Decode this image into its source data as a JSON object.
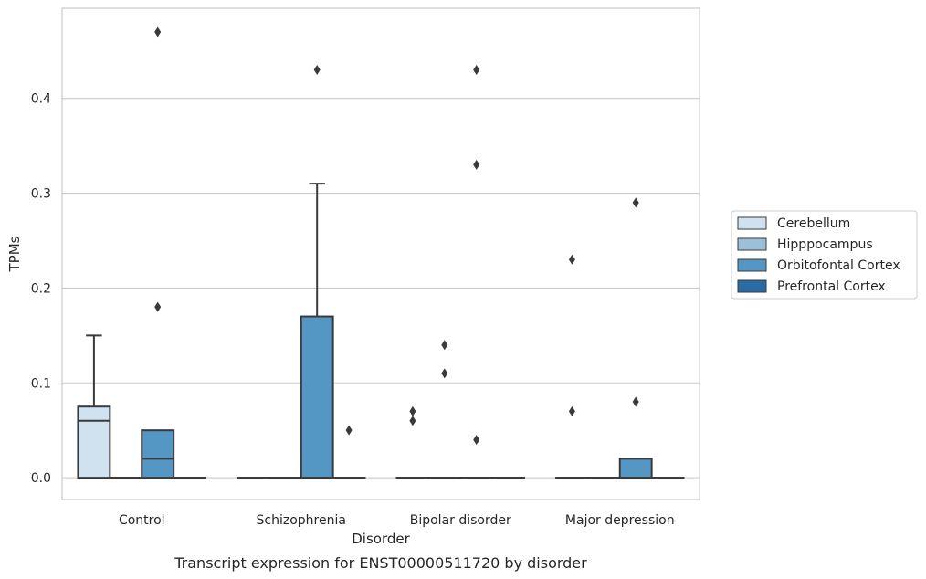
{
  "chart_data": {
    "type": "boxplot",
    "caption": "Transcript expression for ENST00000511720 by disorder",
    "xlabel": "Disorder",
    "ylabel": "TPMs",
    "ylim": [
      -0.023,
      0.495
    ],
    "yticks": [
      "0.0",
      "0.1",
      "0.2",
      "0.3",
      "0.4"
    ],
    "grid": true,
    "legend_placement": "right",
    "categories": [
      "Control",
      "Schizophrenia",
      "Bipolar disorder",
      "Major depression"
    ],
    "series": [
      {
        "name": "Cerebellum",
        "color": "#d0e1f0",
        "boxes": [
          {
            "q1": 0,
            "median": 0.06,
            "q3": 0.075,
            "whisker_low": 0,
            "whisker_high": 0.15,
            "outliers": []
          },
          {
            "q1": 0,
            "median": 0,
            "q3": 0,
            "whisker_low": 0,
            "whisker_high": 0,
            "outliers": []
          },
          {
            "q1": 0,
            "median": 0,
            "q3": 0,
            "whisker_low": 0,
            "whisker_high": 0,
            "outliers": [
              0.07,
              0.06
            ]
          },
          {
            "q1": 0,
            "median": 0,
            "q3": 0,
            "whisker_low": 0,
            "whisker_high": 0,
            "outliers": [
              0.23,
              0.07
            ]
          }
        ]
      },
      {
        "name": "Hipppocampus",
        "color": "#9ac0da",
        "boxes": [
          {
            "q1": 0,
            "median": 0,
            "q3": 0,
            "whisker_low": 0,
            "whisker_high": 0,
            "outliers": []
          },
          {
            "q1": 0,
            "median": 0,
            "q3": 0,
            "whisker_low": 0,
            "whisker_high": 0,
            "outliers": []
          },
          {
            "q1": 0,
            "median": 0,
            "q3": 0,
            "whisker_low": 0,
            "whisker_high": 0,
            "outliers": [
              0.14,
              0.11
            ]
          },
          {
            "q1": 0,
            "median": 0,
            "q3": 0,
            "whisker_low": 0,
            "whisker_high": 0,
            "outliers": []
          }
        ]
      },
      {
        "name": "Orbitofontal Cortex",
        "color": "#5496c4",
        "boxes": [
          {
            "q1": 0,
            "median": 0.02,
            "q3": 0.05,
            "whisker_low": 0,
            "whisker_high": 0.05,
            "outliers": [
              0.47,
              0.18
            ]
          },
          {
            "q1": 0,
            "median": 0,
            "q3": 0.17,
            "whisker_low": 0,
            "whisker_high": 0.31,
            "outliers": [
              0.43
            ]
          },
          {
            "q1": 0,
            "median": 0,
            "q3": 0,
            "whisker_low": 0,
            "whisker_high": 0,
            "outliers": [
              0.43,
              0.33,
              0.04
            ]
          },
          {
            "q1": 0,
            "median": 0,
            "q3": 0.02,
            "whisker_low": 0,
            "whisker_high": 0.02,
            "outliers": [
              0.29,
              0.08
            ]
          }
        ]
      },
      {
        "name": "Prefrontal Cortex",
        "color": "#2b6ca6",
        "boxes": [
          {
            "q1": 0,
            "median": 0,
            "q3": 0,
            "whisker_low": 0,
            "whisker_high": 0,
            "outliers": []
          },
          {
            "q1": 0,
            "median": 0,
            "q3": 0,
            "whisker_low": 0,
            "whisker_high": 0,
            "outliers": [
              0.05
            ]
          },
          {
            "q1": 0,
            "median": 0,
            "q3": 0,
            "whisker_low": 0,
            "whisker_high": 0,
            "outliers": []
          },
          {
            "q1": 0,
            "median": 0,
            "q3": 0,
            "whisker_low": 0,
            "whisker_high": 0,
            "outliers": []
          }
        ]
      }
    ]
  }
}
